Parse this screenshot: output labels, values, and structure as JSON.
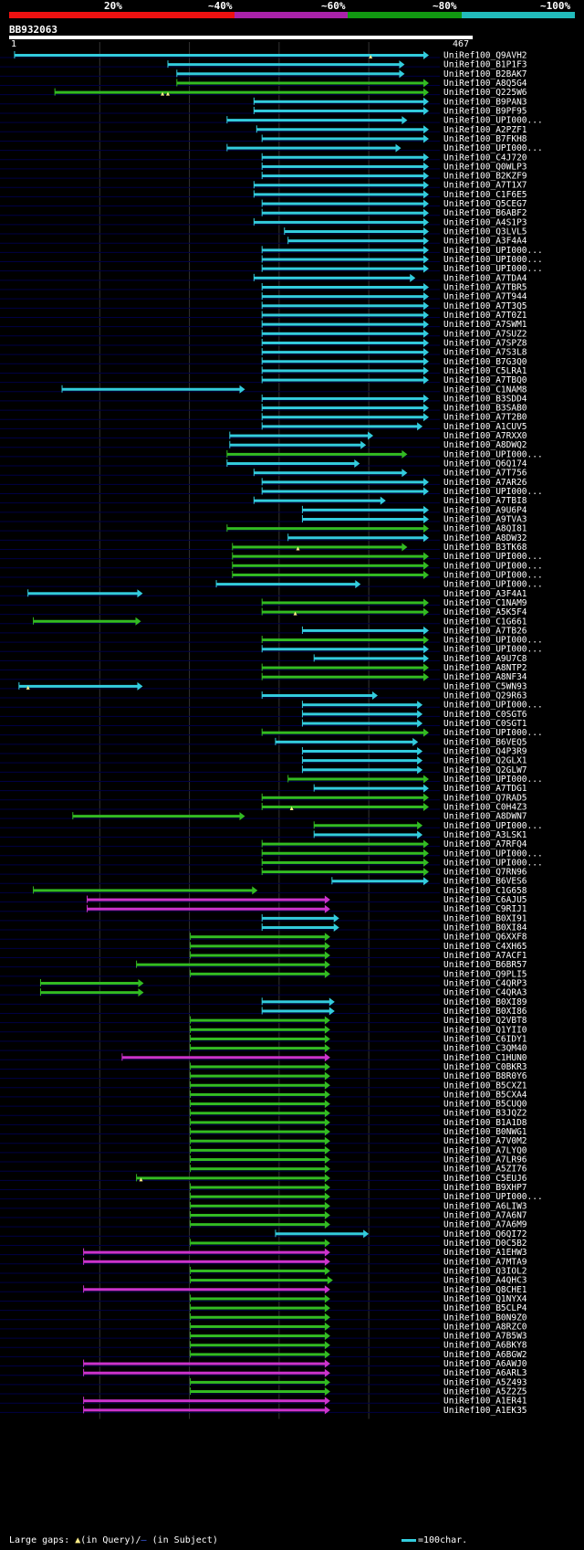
{
  "query": {
    "name": "BB932063",
    "start": 1,
    "end": 467
  },
  "percent_legend": {
    "labels": [
      "20%",
      "~40%",
      "~60%",
      "~80%",
      "~100%"
    ],
    "colors": [
      "#ee1111",
      "#ee7711",
      "#aa22aa",
      "#119911",
      "#22bbbb"
    ]
  },
  "colors": {
    "cyan": "#33ccdd",
    "green": "#33bb22",
    "magenta": "#cc33cc",
    "rowline": "#000044",
    "grid": "#333333"
  },
  "footer": {
    "large_gaps": "Large gaps:",
    "in_query": "(in Query)/",
    "in_subject": "(in Subject)",
    "scale": "=100char."
  },
  "chart_data": {
    "type": "alignment-hits",
    "x_axis": {
      "min": 1,
      "max": 467,
      "unit": "query residue"
    },
    "hits": [
      {
        "name": "UniRef100_Q9AVH2",
        "start": 5,
        "end": 467,
        "color": "cyan",
        "marks": [
          402
        ]
      },
      {
        "name": "UniRef100_B1P1F3",
        "start": 176,
        "end": 440,
        "color": "cyan"
      },
      {
        "name": "UniRef100_B2BAK7",
        "start": 186,
        "end": 440,
        "color": "cyan"
      },
      {
        "name": "UniRef100_A8Q5G4",
        "start": 186,
        "end": 467,
        "color": "green"
      },
      {
        "name": "UniRef100_Q225W6",
        "start": 50,
        "end": 467,
        "color": "green",
        "marks": [
          170,
          176
        ]
      },
      {
        "name": "UniRef100_B9PAN3",
        "start": 272,
        "end": 467,
        "color": "cyan"
      },
      {
        "name": "UniRef100_B9PF95",
        "start": 272,
        "end": 467,
        "color": "cyan"
      },
      {
        "name": "UniRef100_UPI000...",
        "start": 242,
        "end": 443,
        "color": "cyan"
      },
      {
        "name": "UniRef100_A2PZF1",
        "start": 275,
        "end": 467,
        "color": "cyan"
      },
      {
        "name": "UniRef100_B7FKH8",
        "start": 281,
        "end": 467,
        "color": "cyan"
      },
      {
        "name": "UniRef100_UPI000...",
        "start": 242,
        "end": 436,
        "color": "cyan"
      },
      {
        "name": "UniRef100_C4J720",
        "start": 281,
        "end": 467,
        "color": "cyan"
      },
      {
        "name": "UniRef100_Q0WLP3",
        "start": 281,
        "end": 467,
        "color": "cyan"
      },
      {
        "name": "UniRef100_B2KZF9",
        "start": 281,
        "end": 467,
        "color": "cyan"
      },
      {
        "name": "UniRef100_A7T1X7",
        "start": 272,
        "end": 467,
        "color": "cyan"
      },
      {
        "name": "UniRef100_C1F6E5",
        "start": 272,
        "end": 467,
        "color": "cyan"
      },
      {
        "name": "UniRef100_Q5CEG7",
        "start": 281,
        "end": 467,
        "color": "cyan"
      },
      {
        "name": "UniRef100_B6ABF2",
        "start": 281,
        "end": 467,
        "color": "cyan"
      },
      {
        "name": "UniRef100_A4S1P3",
        "start": 272,
        "end": 467,
        "color": "cyan"
      },
      {
        "name": "UniRef100_Q3LVL5",
        "start": 306,
        "end": 467,
        "color": "cyan"
      },
      {
        "name": "UniRef100_A3F4A4",
        "start": 310,
        "end": 467,
        "color": "cyan"
      },
      {
        "name": "UniRef100_UPI000...",
        "start": 281,
        "end": 467,
        "color": "cyan"
      },
      {
        "name": "UniRef100_UPI000...",
        "start": 281,
        "end": 467,
        "color": "cyan"
      },
      {
        "name": "UniRef100_UPI000...",
        "start": 281,
        "end": 467,
        "color": "cyan"
      },
      {
        "name": "UniRef100_A7TDA4",
        "start": 272,
        "end": 452,
        "color": "cyan"
      },
      {
        "name": "UniRef100_A7TBR5",
        "start": 281,
        "end": 467,
        "color": "cyan"
      },
      {
        "name": "UniRef100_A7T944",
        "start": 281,
        "end": 467,
        "color": "cyan"
      },
      {
        "name": "UniRef100_A7T3Q5",
        "start": 281,
        "end": 467,
        "color": "cyan"
      },
      {
        "name": "UniRef100_A7T0Z1",
        "start": 281,
        "end": 467,
        "color": "cyan"
      },
      {
        "name": "UniRef100_A7SWM1",
        "start": 281,
        "end": 467,
        "color": "cyan"
      },
      {
        "name": "UniRef100_A7SUZ2",
        "start": 281,
        "end": 467,
        "color": "cyan"
      },
      {
        "name": "UniRef100_A7SPZ8",
        "start": 281,
        "end": 467,
        "color": "cyan"
      },
      {
        "name": "UniRef100_A7S3L8",
        "start": 281,
        "end": 467,
        "color": "cyan"
      },
      {
        "name": "UniRef100_B7G3Q0",
        "start": 281,
        "end": 467,
        "color": "cyan"
      },
      {
        "name": "UniRef100_C5LRA1",
        "start": 281,
        "end": 467,
        "color": "cyan"
      },
      {
        "name": "UniRef100_A7TBQ0",
        "start": 281,
        "end": 467,
        "color": "cyan"
      },
      {
        "name": "UniRef100_C1NAM8",
        "start": 58,
        "end": 262,
        "color": "cyan"
      },
      {
        "name": "UniRef100_B3SDD4",
        "start": 281,
        "end": 467,
        "color": "cyan"
      },
      {
        "name": "UniRef100_B3SAB0",
        "start": 281,
        "end": 467,
        "color": "cyan"
      },
      {
        "name": "UniRef100_A7T2B0",
        "start": 281,
        "end": 467,
        "color": "cyan"
      },
      {
        "name": "UniRef100_A1CUV5",
        "start": 281,
        "end": 460,
        "color": "cyan"
      },
      {
        "name": "UniRef100_A7RXX0",
        "start": 245,
        "end": 405,
        "color": "cyan"
      },
      {
        "name": "UniRef100_A8DWQ2",
        "start": 245,
        "end": 397,
        "color": "cyan"
      },
      {
        "name": "UniRef100_UPI000...",
        "start": 242,
        "end": 443,
        "color": "green"
      },
      {
        "name": "UniRef100_Q6Q174",
        "start": 242,
        "end": 390,
        "color": "cyan"
      },
      {
        "name": "UniRef100_A7T756",
        "start": 272,
        "end": 443,
        "color": "cyan"
      },
      {
        "name": "UniRef100_A7AR26",
        "start": 281,
        "end": 467,
        "color": "cyan"
      },
      {
        "name": "UniRef100_UPI000...",
        "start": 281,
        "end": 467,
        "color": "cyan"
      },
      {
        "name": "UniRef100_A7TBI8",
        "start": 272,
        "end": 419,
        "color": "cyan"
      },
      {
        "name": "UniRef100_A9U6P4",
        "start": 326,
        "end": 467,
        "color": "cyan"
      },
      {
        "name": "UniRef100_A9TVA3",
        "start": 326,
        "end": 467,
        "color": "cyan"
      },
      {
        "name": "UniRef100_A8QI81",
        "start": 242,
        "end": 467,
        "color": "green"
      },
      {
        "name": "UniRef100_A8DW32",
        "start": 310,
        "end": 467,
        "color": "cyan"
      },
      {
        "name": "UniRef100_B3TK68",
        "start": 248,
        "end": 443,
        "color": "green",
        "marks": [
          321
        ]
      },
      {
        "name": "UniRef100_UPI000...",
        "start": 248,
        "end": 467,
        "color": "green"
      },
      {
        "name": "UniRef100_UPI000...",
        "start": 248,
        "end": 467,
        "color": "green"
      },
      {
        "name": "UniRef100_UPI000...",
        "start": 248,
        "end": 467,
        "color": "green"
      },
      {
        "name": "UniRef100_UPI000...",
        "start": 230,
        "end": 391,
        "color": "cyan"
      },
      {
        "name": "UniRef100_A3F4A1",
        "start": 20,
        "end": 148,
        "color": "cyan"
      },
      {
        "name": "UniRef100_C1NAM9",
        "start": 281,
        "end": 467,
        "color": "green"
      },
      {
        "name": "UniRef100_A5K5F4",
        "start": 281,
        "end": 467,
        "color": "green",
        "marks": [
          318
        ]
      },
      {
        "name": "UniRef100_C1G661",
        "start": 26,
        "end": 146,
        "color": "green"
      },
      {
        "name": "UniRef100_A7TB26",
        "start": 326,
        "end": 467,
        "color": "cyan"
      },
      {
        "name": "UniRef100_UPI000...",
        "start": 281,
        "end": 467,
        "color": "green"
      },
      {
        "name": "UniRef100_UPI000...",
        "start": 281,
        "end": 467,
        "color": "cyan"
      },
      {
        "name": "UniRef100_A9U7C8",
        "start": 339,
        "end": 467,
        "color": "cyan"
      },
      {
        "name": "UniRef100_A8NTP2",
        "start": 281,
        "end": 467,
        "color": "green"
      },
      {
        "name": "UniRef100_A8NF34",
        "start": 281,
        "end": 467,
        "color": "green"
      },
      {
        "name": "UniRef100_C5WN93",
        "start": 10,
        "end": 148,
        "color": "cyan",
        "marks": [
          20
        ]
      },
      {
        "name": "UniRef100_Q29R63",
        "start": 281,
        "end": 410,
        "color": "cyan"
      },
      {
        "name": "UniRef100_UPI000...",
        "start": 326,
        "end": 460,
        "color": "cyan"
      },
      {
        "name": "UniRef100_C0SGT6",
        "start": 326,
        "end": 460,
        "color": "cyan"
      },
      {
        "name": "UniRef100_C0SGT1",
        "start": 326,
        "end": 460,
        "color": "cyan"
      },
      {
        "name": "UniRef100_UPI000...",
        "start": 281,
        "end": 467,
        "color": "green"
      },
      {
        "name": "UniRef100_B6VEQ5",
        "start": 296,
        "end": 455,
        "color": "cyan"
      },
      {
        "name": "UniRef100_Q4P3R9",
        "start": 326,
        "end": 460,
        "color": "cyan"
      },
      {
        "name": "UniRef100_Q2GLX1",
        "start": 326,
        "end": 460,
        "color": "cyan"
      },
      {
        "name": "UniRef100_Q2GLW7",
        "start": 326,
        "end": 460,
        "color": "cyan"
      },
      {
        "name": "UniRef100_UPI000...",
        "start": 310,
        "end": 467,
        "color": "green"
      },
      {
        "name": "UniRef100_A7TDG1",
        "start": 339,
        "end": 467,
        "color": "cyan"
      },
      {
        "name": "UniRef100_Q7RAD5",
        "start": 281,
        "end": 467,
        "color": "green"
      },
      {
        "name": "UniRef100_C0H4Z3",
        "start": 281,
        "end": 467,
        "color": "green",
        "marks": [
          314
        ]
      },
      {
        "name": "UniRef100_A8DWN7",
        "start": 70,
        "end": 262,
        "color": "green"
      },
      {
        "name": "UniRef100_UPI000...",
        "start": 339,
        "end": 460,
        "color": "green"
      },
      {
        "name": "UniRef100_A3LSK1",
        "start": 339,
        "end": 460,
        "color": "cyan"
      },
      {
        "name": "UniRef100_A7RFQ4",
        "start": 281,
        "end": 467,
        "color": "green"
      },
      {
        "name": "UniRef100_UPI000...",
        "start": 281,
        "end": 467,
        "color": "green"
      },
      {
        "name": "UniRef100_UPI000...",
        "start": 281,
        "end": 467,
        "color": "green"
      },
      {
        "name": "UniRef100_Q7RN96",
        "start": 281,
        "end": 467,
        "color": "green"
      },
      {
        "name": "UniRef100_B6VES6",
        "start": 359,
        "end": 467,
        "color": "cyan"
      },
      {
        "name": "UniRef100_C1G658",
        "start": 26,
        "end": 276,
        "color": "green"
      },
      {
        "name": "UniRef100_C6AJU5",
        "start": 86,
        "end": 357,
        "color": "magenta"
      },
      {
        "name": "UniRef100_C9RIJ1",
        "start": 86,
        "end": 357,
        "color": "magenta"
      },
      {
        "name": "UniRef100_B0XI91",
        "start": 281,
        "end": 367,
        "color": "cyan"
      },
      {
        "name": "UniRef100_B0XI84",
        "start": 281,
        "end": 367,
        "color": "cyan"
      },
      {
        "name": "UniRef100_Q6XXF8",
        "start": 201,
        "end": 357,
        "color": "green"
      },
      {
        "name": "UniRef100_C4XH65",
        "start": 201,
        "end": 357,
        "color": "green"
      },
      {
        "name": "UniRef100_A7ACF1",
        "start": 201,
        "end": 357,
        "color": "green"
      },
      {
        "name": "UniRef100_B6BR57",
        "start": 141,
        "end": 357,
        "color": "green"
      },
      {
        "name": "UniRef100_Q9PLI5",
        "start": 201,
        "end": 357,
        "color": "green"
      },
      {
        "name": "UniRef100_C4QRP3",
        "start": 34,
        "end": 149,
        "color": "green"
      },
      {
        "name": "UniRef100_C4QRA3",
        "start": 34,
        "end": 149,
        "color": "green"
      },
      {
        "name": "UniRef100_B0XI89",
        "start": 281,
        "end": 362,
        "color": "cyan"
      },
      {
        "name": "UniRef100_B0XI86",
        "start": 281,
        "end": 362,
        "color": "cyan"
      },
      {
        "name": "UniRef100_Q2VBT8",
        "start": 201,
        "end": 357,
        "color": "green"
      },
      {
        "name": "UniRef100_Q1YII0",
        "start": 201,
        "end": 357,
        "color": "green"
      },
      {
        "name": "UniRef100_C6IDY1",
        "start": 201,
        "end": 357,
        "color": "green"
      },
      {
        "name": "UniRef100_C3QM40",
        "start": 201,
        "end": 357,
        "color": "green"
      },
      {
        "name": "UniRef100_C1HUN0",
        "start": 125,
        "end": 357,
        "color": "magenta"
      },
      {
        "name": "UniRef100_C0BKR3",
        "start": 201,
        "end": 357,
        "color": "green"
      },
      {
        "name": "UniRef100_B8R0Y6",
        "start": 201,
        "end": 357,
        "color": "green"
      },
      {
        "name": "UniRef100_B5CXZ1",
        "start": 201,
        "end": 357,
        "color": "green"
      },
      {
        "name": "UniRef100_B5CXA4",
        "start": 201,
        "end": 357,
        "color": "green"
      },
      {
        "name": "UniRef100_B5CUQ0",
        "start": 201,
        "end": 357,
        "color": "green"
      },
      {
        "name": "UniRef100_B3JQZ2",
        "start": 201,
        "end": 357,
        "color": "green"
      },
      {
        "name": "UniRef100_B1A1D8",
        "start": 201,
        "end": 357,
        "color": "green"
      },
      {
        "name": "UniRef100_B0NWG1",
        "start": 201,
        "end": 357,
        "color": "green"
      },
      {
        "name": "UniRef100_A7V0M2",
        "start": 201,
        "end": 357,
        "color": "green"
      },
      {
        "name": "UniRef100_A7LYQ0",
        "start": 201,
        "end": 357,
        "color": "green"
      },
      {
        "name": "UniRef100_A7LR96",
        "start": 201,
        "end": 357,
        "color": "green"
      },
      {
        "name": "UniRef100_A5ZI76",
        "start": 201,
        "end": 357,
        "color": "green"
      },
      {
        "name": "UniRef100_C5EUJ6",
        "start": 141,
        "end": 357,
        "color": "green",
        "marks": [
          146
        ]
      },
      {
        "name": "UniRef100_B9XHP7",
        "start": 201,
        "end": 357,
        "color": "green"
      },
      {
        "name": "UniRef100_UPI000...",
        "start": 201,
        "end": 357,
        "color": "green"
      },
      {
        "name": "UniRef100_A6LIW3",
        "start": 201,
        "end": 357,
        "color": "green"
      },
      {
        "name": "UniRef100_A7A6N7",
        "start": 201,
        "end": 357,
        "color": "green"
      },
      {
        "name": "UniRef100_A7A6M9",
        "start": 201,
        "end": 357,
        "color": "green"
      },
      {
        "name": "UniRef100_Q6QI72",
        "start": 296,
        "end": 400,
        "color": "cyan"
      },
      {
        "name": "UniRef100_D0C5B2",
        "start": 201,
        "end": 357,
        "color": "green"
      },
      {
        "name": "UniRef100_A1EHW3",
        "start": 82,
        "end": 357,
        "color": "magenta"
      },
      {
        "name": "UniRef100_A7MTA9",
        "start": 82,
        "end": 357,
        "color": "magenta"
      },
      {
        "name": "UniRef100_Q3IOL2",
        "start": 201,
        "end": 357,
        "color": "green"
      },
      {
        "name": "UniRef100_A4QHC3",
        "start": 201,
        "end": 360,
        "color": "green"
      },
      {
        "name": "UniRef100_Q8CHE1",
        "start": 82,
        "end": 357,
        "color": "magenta"
      },
      {
        "name": "UniRef100_Q1NYX4",
        "start": 201,
        "end": 357,
        "color": "green"
      },
      {
        "name": "UniRef100_B5CLP4",
        "start": 201,
        "end": 357,
        "color": "green"
      },
      {
        "name": "UniRef100_B0N9Z0",
        "start": 201,
        "end": 357,
        "color": "green"
      },
      {
        "name": "UniRef100_A8RZC0",
        "start": 201,
        "end": 357,
        "color": "green"
      },
      {
        "name": "UniRef100_A7B5W3",
        "start": 201,
        "end": 357,
        "color": "green"
      },
      {
        "name": "UniRef100_A6BKY8",
        "start": 201,
        "end": 357,
        "color": "green"
      },
      {
        "name": "UniRef100_A6BGW2",
        "start": 201,
        "end": 357,
        "color": "green"
      },
      {
        "name": "UniRef100_A6AWJ0",
        "start": 82,
        "end": 357,
        "color": "magenta"
      },
      {
        "name": "UniRef100_A6ARL3",
        "start": 82,
        "end": 357,
        "color": "magenta"
      },
      {
        "name": "UniRef100_A5Z493",
        "start": 201,
        "end": 357,
        "color": "green"
      },
      {
        "name": "UniRef100_A5Z2Z5",
        "start": 201,
        "end": 357,
        "color": "green"
      },
      {
        "name": "UniRef100_A1ER41",
        "start": 82,
        "end": 357,
        "color": "magenta"
      },
      {
        "name": "UniRef100_A1EK35",
        "start": 82,
        "end": 357,
        "color": "magenta"
      }
    ]
  }
}
